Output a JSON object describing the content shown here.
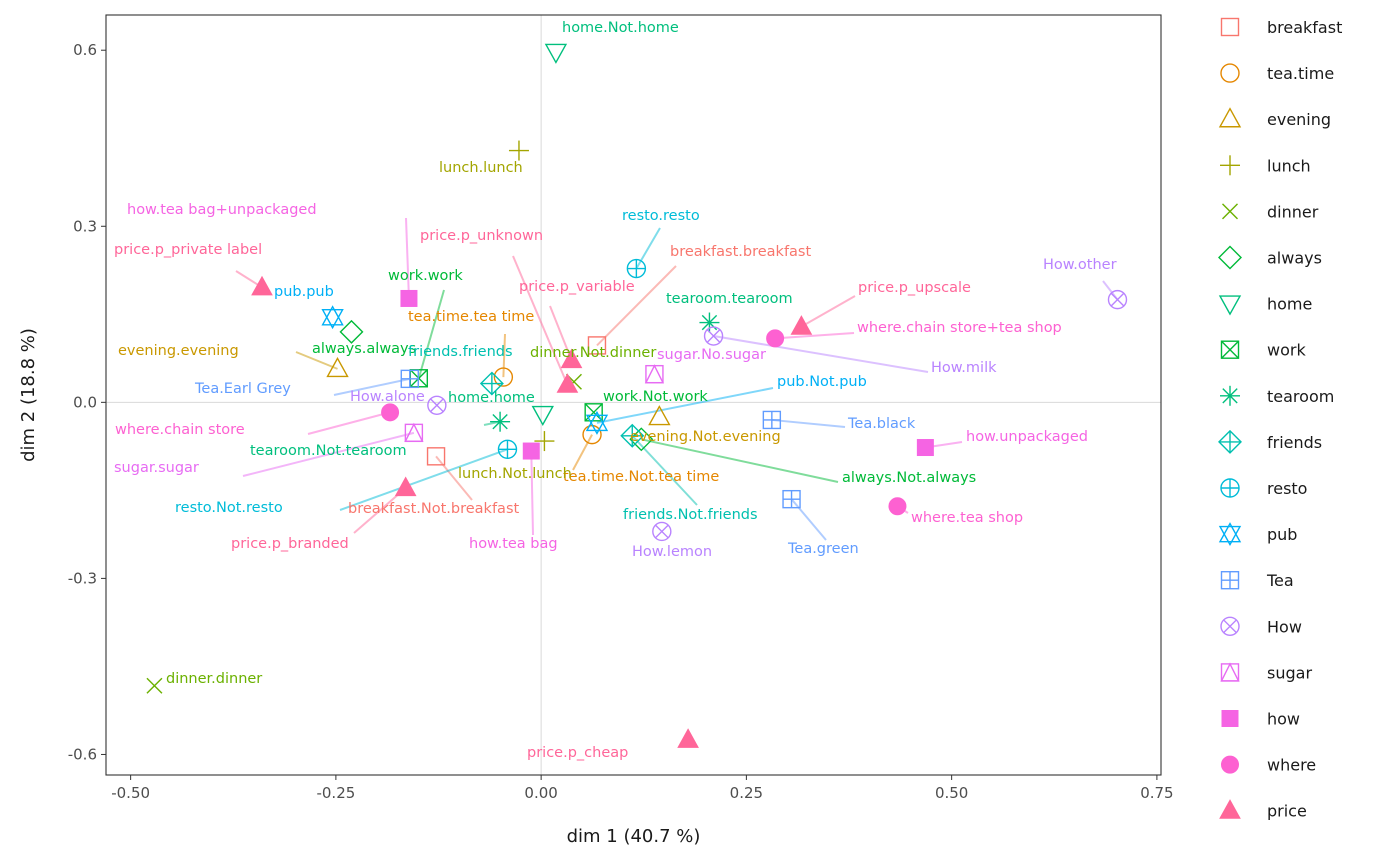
{
  "chart_data": {
    "type": "scatter",
    "xlabel": "dim 1 (40.7 %)",
    "ylabel": "dim 2 (18.8 %)",
    "xlim": [
      -0.53,
      0.755
    ],
    "ylim": [
      -0.635,
      0.66
    ],
    "xticks": [
      {
        "value": -0.5,
        "label": "-0.50"
      },
      {
        "value": -0.25,
        "label": "-0.25"
      },
      {
        "value": 0.0,
        "label": "0.00"
      },
      {
        "value": 0.25,
        "label": "0.25"
      },
      {
        "value": 0.5,
        "label": "0.50"
      },
      {
        "value": 0.75,
        "label": "0.75"
      }
    ],
    "yticks": [
      {
        "value": -0.6,
        "label": "-0.6"
      },
      {
        "value": -0.3,
        "label": "-0.3"
      },
      {
        "value": 0.0,
        "label": "0.0"
      },
      {
        "value": 0.3,
        "label": "0.3"
      },
      {
        "value": 0.6,
        "label": "0.6"
      }
    ],
    "grid": "reference lines at x = 0 and y = 0",
    "legend_position": "right",
    "groups": [
      {
        "name": "breakfast",
        "color": "#F8766D",
        "shape": "square-open"
      },
      {
        "name": "tea.time",
        "color": "#E58700",
        "shape": "circle-open"
      },
      {
        "name": "evening",
        "color": "#C99800",
        "shape": "triangle-open"
      },
      {
        "name": "lunch",
        "color": "#A3A500",
        "shape": "plus"
      },
      {
        "name": "dinner",
        "color": "#6BB100",
        "shape": "cross"
      },
      {
        "name": "always",
        "color": "#00BA38",
        "shape": "diamond-open"
      },
      {
        "name": "home",
        "color": "#00BF7D",
        "shape": "triangle-down-open"
      },
      {
        "name": "work",
        "color": "#00C0AF",
        "shape": "square-cross"
      },
      {
        "name": "tearoom",
        "color": "#00BCD8",
        "shape": "asterisk"
      },
      {
        "name": "friends",
        "color": "#00B0F6",
        "shape": "diamond-plus"
      },
      {
        "name": "resto",
        "color": "#619CFF",
        "shape": "circle-plus"
      },
      {
        "name": "pub",
        "color": "#B983FF",
        "shape": "star-of-david"
      },
      {
        "name": "Tea",
        "color": "#E76BF3",
        "shape": "square-plus"
      },
      {
        "name": "How",
        "color": "#FD61D1",
        "shape": "circle-cross"
      },
      {
        "name": "sugar",
        "color": "#FF67A4",
        "shape": "square-triangle"
      },
      {
        "name": "how",
        "color": "#F8766D",
        "shape": "square-filled"
      },
      {
        "name": "where",
        "color": "#E58700",
        "shape": "circle-filled"
      },
      {
        "name": "price",
        "color": "#C99800",
        "shape": "triangle-filled"
      }
    ],
    "points": [
      {
        "label": "breakfast.breakfast",
        "group": "breakfast",
        "x": 0.068,
        "y": 0.097
      },
      {
        "label": "breakfast.Not.breakfast",
        "group": "breakfast",
        "x": -0.128,
        "y": -0.092
      },
      {
        "label": "tea.time.tea time",
        "group": "tea.time",
        "x": -0.046,
        "y": 0.043
      },
      {
        "label": "tea.time.Not.tea time",
        "group": "tea.time",
        "x": 0.062,
        "y": -0.055
      },
      {
        "label": "evening.evening",
        "group": "evening",
        "x": -0.248,
        "y": 0.057
      },
      {
        "label": "evening.Not.evening",
        "group": "evening",
        "x": 0.144,
        "y": -0.025
      },
      {
        "label": "lunch.lunch",
        "group": "lunch",
        "x": -0.027,
        "y": 0.429
      },
      {
        "label": "lunch.Not.lunch",
        "group": "lunch",
        "x": 0.004,
        "y": -0.066
      },
      {
        "label": "dinner.dinner",
        "group": "dinner",
        "x": -0.471,
        "y": -0.483
      },
      {
        "label": "dinner.Not.dinner",
        "group": "dinner",
        "x": 0.04,
        "y": 0.035
      },
      {
        "label": "always.always",
        "group": "always",
        "x": -0.231,
        "y": 0.12
      },
      {
        "label": "always.Not.always",
        "group": "always",
        "x": 0.122,
        "y": -0.063
      },
      {
        "label": "home.home",
        "group": "home",
        "x": 0.002,
        "y": -0.02
      },
      {
        "label": "home.Not.home",
        "group": "home",
        "x": 0.018,
        "y": 0.597
      },
      {
        "label": "work.work",
        "group": "work",
        "x": -0.149,
        "y": 0.041
      },
      {
        "label": "work.Not.work",
        "group": "work",
        "x": 0.064,
        "y": -0.017
      },
      {
        "label": "tearoom.tearoom",
        "group": "tearoom",
        "x": 0.205,
        "y": 0.136
      },
      {
        "label": "tearoom.Not.tearoom",
        "group": "tearoom",
        "x": -0.05,
        "y": -0.033
      },
      {
        "label": "friends.friends",
        "group": "friends",
        "x": -0.06,
        "y": 0.032
      },
      {
        "label": "friends.Not.friends",
        "group": "friends",
        "x": 0.111,
        "y": -0.057
      },
      {
        "label": "resto.resto",
        "group": "resto",
        "x": 0.116,
        "y": 0.228
      },
      {
        "label": "resto.Not.resto",
        "group": "resto",
        "x": -0.041,
        "y": -0.08
      },
      {
        "label": "pub.pub",
        "group": "pub",
        "x": -0.254,
        "y": 0.145
      },
      {
        "label": "pub.Not.pub",
        "group": "pub",
        "x": 0.068,
        "y": -0.035
      },
      {
        "label": "Tea.Earl Grey",
        "group": "Tea",
        "x": -0.16,
        "y": 0.04
      },
      {
        "label": "Tea.black",
        "group": "Tea",
        "x": 0.281,
        "y": -0.03
      },
      {
        "label": "Tea.green",
        "group": "Tea",
        "x": 0.305,
        "y": -0.165
      },
      {
        "label": "How.alone",
        "group": "How",
        "x": -0.127,
        "y": -0.005
      },
      {
        "label": "How.milk",
        "group": "How",
        "x": 0.21,
        "y": 0.113
      },
      {
        "label": "How.lemon",
        "group": "How",
        "x": 0.147,
        "y": -0.22
      },
      {
        "label": "How.other",
        "group": "How",
        "x": 0.702,
        "y": 0.175
      },
      {
        "label": "sugar.sugar",
        "group": "sugar",
        "x": -0.155,
        "y": -0.052
      },
      {
        "label": "sugar.No.sugar",
        "group": "sugar",
        "x": 0.138,
        "y": 0.048
      },
      {
        "label": "how.tea bag",
        "group": "how",
        "x": -0.012,
        "y": -0.083
      },
      {
        "label": "how.tea bag+unpackaged",
        "group": "how",
        "x": -0.161,
        "y": 0.177
      },
      {
        "label": "how.unpackaged",
        "group": "how",
        "x": 0.468,
        "y": -0.077
      },
      {
        "label": "where.chain store",
        "group": "where",
        "x": -0.184,
        "y": -0.017
      },
      {
        "label": "where.chain store+tea shop",
        "group": "where",
        "x": 0.285,
        "y": 0.109
      },
      {
        "label": "where.tea shop",
        "group": "where",
        "x": 0.434,
        "y": -0.177
      },
      {
        "label": "price.p_branded",
        "group": "price",
        "x": -0.165,
        "y": -0.146
      },
      {
        "label": "price.p_cheap",
        "group": "price",
        "x": 0.179,
        "y": -0.575
      },
      {
        "label": "price.p_private label",
        "group": "price",
        "x": -0.34,
        "y": 0.196
      },
      {
        "label": "price.p_unknown",
        "group": "price",
        "x": 0.032,
        "y": 0.03
      },
      {
        "label": "price.p_upscale",
        "group": "price",
        "x": 0.317,
        "y": 0.129
      },
      {
        "label": "price.p_variable",
        "group": "price",
        "x": 0.037,
        "y": 0.072
      }
    ]
  }
}
